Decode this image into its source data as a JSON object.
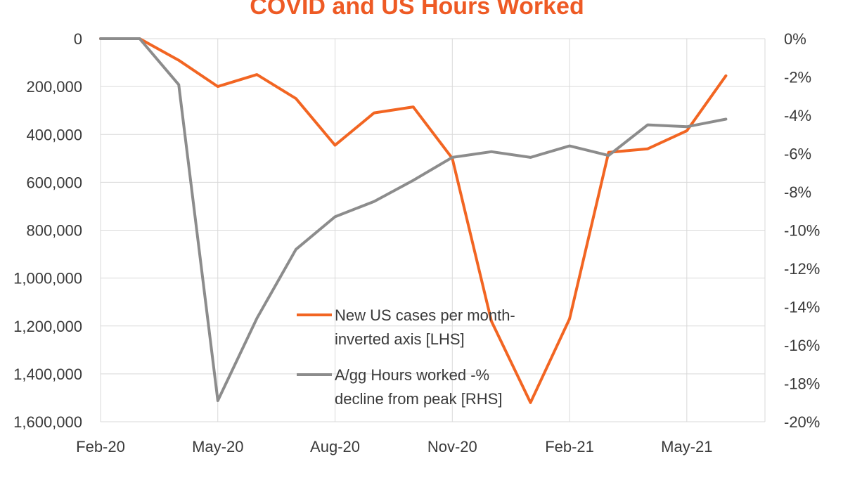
{
  "chart_data": {
    "type": "line",
    "title": "COVID and US Hours Worked",
    "colors": {
      "title": "#ee5a24",
      "cases": "#f26522",
      "hours": "#8c8c8c",
      "grid": "#d9d9d9"
    },
    "x": [
      "Feb-20",
      "Mar-20",
      "Apr-20",
      "May-20",
      "Jun-20",
      "Jul-20",
      "Aug-20",
      "Sep-20",
      "Oct-20",
      "Nov-20",
      "Dec-20",
      "Jan-21",
      "Feb-21",
      "Mar-21",
      "Apr-21",
      "May-21",
      "Jun-21"
    ],
    "x_tick_labels": [
      "Feb-20",
      "May-20",
      "Aug-20",
      "Nov-20",
      "Feb-21",
      "May-21"
    ],
    "left_axis": {
      "inverted": true,
      "ylim": [
        0,
        1600000
      ],
      "tick_labels": [
        "0",
        "200,000",
        "400,000",
        "600,000",
        "800,000",
        "1,000,000",
        "1,200,000",
        "1,400,000",
        "1,600,000"
      ]
    },
    "right_axis": {
      "ylim": [
        -20,
        0
      ],
      "tick_labels": [
        "0%",
        "-2%",
        "-4%",
        "-6%",
        "-8%",
        "-10%",
        "-12%",
        "-14%",
        "-16%",
        "-18%",
        "-20%"
      ]
    },
    "grid": true,
    "legend_position": "center-bottom",
    "series": [
      {
        "name": "New US cases per month- inverted axis [LHS]",
        "legend_lines": [
          "New US cases per month-",
          "inverted axis [LHS]"
        ],
        "axis": "left",
        "values": [
          0,
          0,
          90000,
          200000,
          150000,
          250000,
          445000,
          310000,
          285000,
          500000,
          1180000,
          1520000,
          1170000,
          475000,
          460000,
          385000,
          155000
        ]
      },
      {
        "name": "A/gg Hours worked -% decline from peak [RHS]",
        "legend_lines": [
          "A/gg Hours worked -%",
          "decline from peak [RHS]"
        ],
        "axis": "right",
        "values": [
          0,
          0,
          -2.4,
          -18.9,
          -14.6,
          -11.0,
          -9.3,
          -8.5,
          -7.4,
          -6.2,
          -5.9,
          -6.2,
          -5.6,
          -6.1,
          -4.5,
          -4.6,
          -4.2
        ]
      }
    ]
  }
}
